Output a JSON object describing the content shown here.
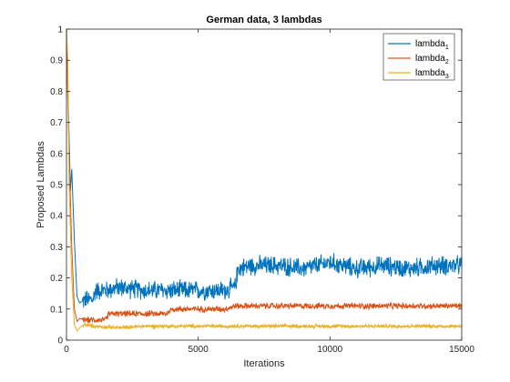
{
  "chart_data": {
    "type": "line",
    "title": "German data, 3 lambdas",
    "xlabel": "Iterations",
    "ylabel": "Proposed Lambdas",
    "xlim": [
      0,
      15000
    ],
    "ylim": [
      0,
      1
    ],
    "xticks": [
      0,
      5000,
      10000,
      15000
    ],
    "xtick_labels": [
      "0",
      "5000",
      "10000",
      "15000"
    ],
    "yticks": [
      0,
      0.1,
      0.2,
      0.3,
      0.4,
      0.5,
      0.6,
      0.7,
      0.8,
      0.9,
      1
    ],
    "ytick_labels": [
      "0",
      "0.1",
      "0.2",
      "0.3",
      "0.4",
      "0.5",
      "0.6",
      "0.7",
      "0.8",
      "0.9",
      "1"
    ],
    "grid": false,
    "legend_position": "top-right",
    "series": [
      {
        "name": "lambda",
        "subscript": "1",
        "color": "#0072BD",
        "x": [
          0,
          100,
          150,
          200,
          300,
          400,
          500,
          700,
          1000,
          1100,
          1500,
          2000,
          3000,
          4000,
          5000,
          6000,
          6400,
          6500,
          7000,
          8000,
          9000,
          10000,
          11000,
          12000,
          13000,
          14000,
          15000
        ],
        "y": [
          1.0,
          0.65,
          0.48,
          0.55,
          0.32,
          0.14,
          0.12,
          0.13,
          0.13,
          0.16,
          0.16,
          0.17,
          0.16,
          0.16,
          0.16,
          0.16,
          0.17,
          0.23,
          0.24,
          0.24,
          0.23,
          0.25,
          0.23,
          0.24,
          0.23,
          0.24,
          0.24
        ],
        "noise": 0.025
      },
      {
        "name": "lambda",
        "subscript": "2",
        "color": "#D95319",
        "x": [
          0,
          100,
          200,
          300,
          400,
          500,
          700,
          1000,
          1500,
          1600,
          2000,
          3000,
          3800,
          4000,
          5000,
          6000,
          6400,
          7000,
          8000,
          9000,
          10000,
          11000,
          12000,
          13000,
          14000,
          15000
        ],
        "y": [
          0.95,
          0.6,
          0.3,
          0.1,
          0.06,
          0.07,
          0.065,
          0.065,
          0.065,
          0.085,
          0.085,
          0.085,
          0.085,
          0.1,
          0.1,
          0.1,
          0.11,
          0.11,
          0.11,
          0.11,
          0.11,
          0.11,
          0.11,
          0.11,
          0.11,
          0.11
        ],
        "noise": 0.008
      },
      {
        "name": "lambda",
        "subscript": "3",
        "color": "#EDB120",
        "x": [
          0,
          50,
          100,
          200,
          300,
          400,
          500,
          700,
          1000,
          2000,
          3000,
          4000,
          5000,
          6000,
          7000,
          8000,
          9000,
          10000,
          11000,
          12000,
          13000,
          14000,
          15000
        ],
        "y": [
          1.0,
          0.9,
          0.5,
          0.2,
          0.05,
          0.03,
          0.04,
          0.05,
          0.045,
          0.04,
          0.045,
          0.045,
          0.045,
          0.045,
          0.045,
          0.045,
          0.045,
          0.045,
          0.045,
          0.045,
          0.045,
          0.045,
          0.045
        ],
        "noise": 0.005
      }
    ]
  }
}
